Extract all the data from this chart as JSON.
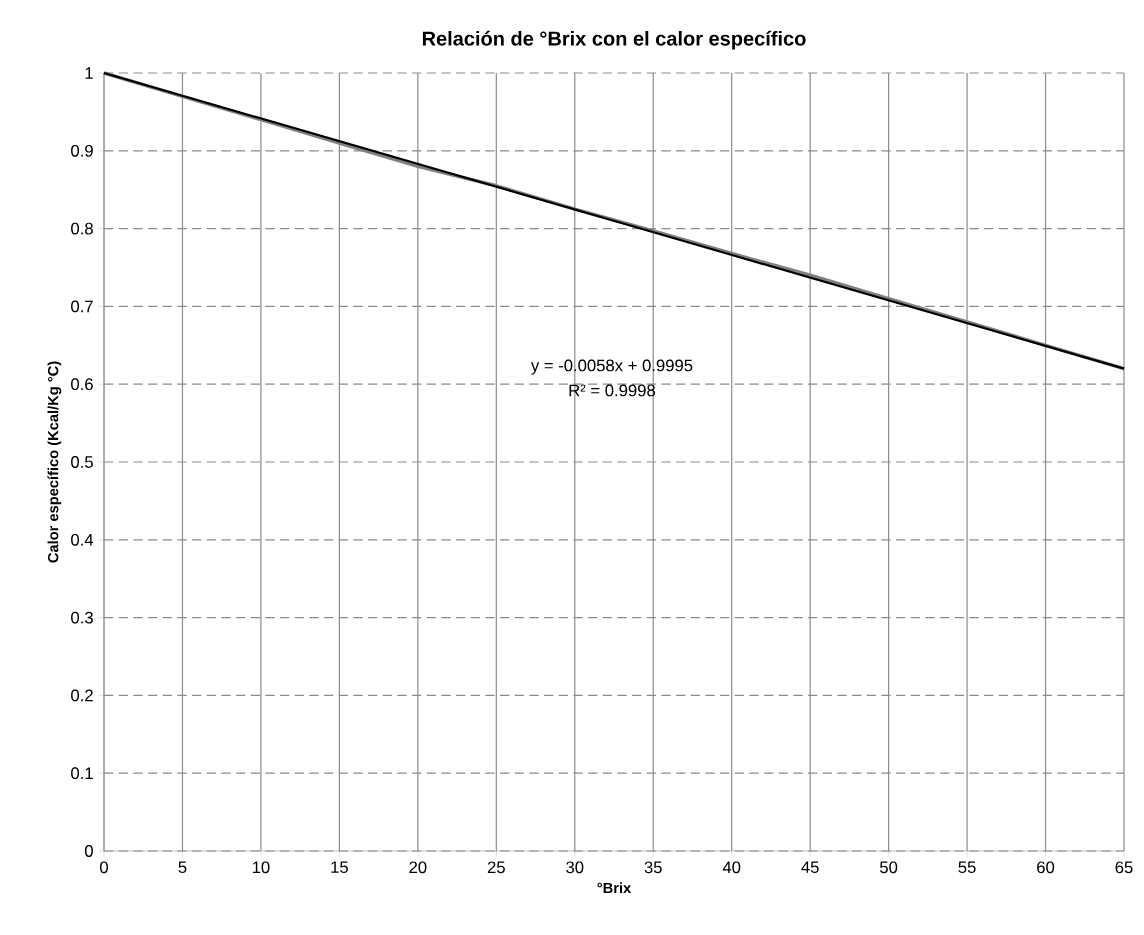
{
  "chart_data": {
    "type": "line",
    "title": "Relación de °Brix con el calor específico",
    "xlabel": "°Brix",
    "ylabel": "Calor específico (Kcal/Kg °C)",
    "series": [
      {
        "color": "#808080",
        "x": [
          0,
          5,
          10,
          15,
          20,
          25,
          30,
          35,
          40,
          45,
          50,
          55,
          60,
          65
        ],
        "values": [
          1.0,
          0.97,
          0.94,
          0.91,
          0.88,
          0.855,
          0.825,
          0.797,
          0.768,
          0.74,
          0.71,
          0.68,
          0.65,
          0.62
        ]
      },
      {
        "type": "line",
        "color": "#000000",
        "x": [
          0,
          65
        ],
        "values": [
          1.0,
          0.62
        ]
      }
    ],
    "annotations": [
      "y = -0.0058x + 0.9995",
      "R² = 0.9998"
    ],
    "xlim": [
      0,
      65
    ],
    "ylim": [
      0,
      1
    ],
    "xticks": [
      0,
      5,
      10,
      15,
      20,
      25,
      30,
      35,
      40,
      45,
      50,
      55,
      60,
      65
    ],
    "yticks": [
      0,
      0.1,
      0.2,
      0.3,
      0.4,
      0.5,
      0.6,
      0.7,
      0.8,
      0.9,
      1
    ],
    "grid": true,
    "marker": "none",
    "line_style": "solid"
  }
}
